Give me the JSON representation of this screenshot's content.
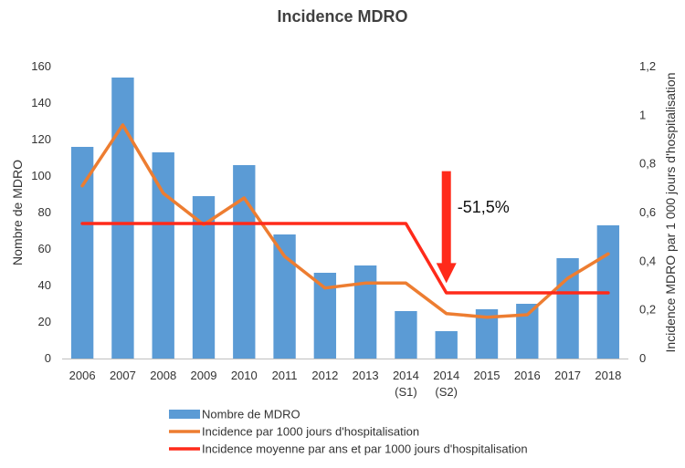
{
  "chart_data": {
    "type": "bar",
    "title": "Incidence MDRO",
    "categories": [
      [
        "2006"
      ],
      [
        "2007"
      ],
      [
        "2008"
      ],
      [
        "2009"
      ],
      [
        "2010"
      ],
      [
        "2011"
      ],
      [
        "2012"
      ],
      [
        "2013"
      ],
      [
        "2014",
        "(S1)"
      ],
      [
        "2014",
        "(S2)"
      ],
      [
        "2015"
      ],
      [
        "2016"
      ],
      [
        "2017"
      ],
      [
        "2018"
      ]
    ],
    "ylabel": "Nombre de MDRO",
    "y2label": "Incidence MDRO par 1 000 jours d'hospitalisation",
    "ylim": [
      0,
      160
    ],
    "yticks": [
      "0",
      "20",
      "40",
      "60",
      "80",
      "100",
      "120",
      "140",
      "160"
    ],
    "y2lim": [
      0,
      1.2
    ],
    "y2ticks": [
      "0",
      "0,2",
      "0,4",
      "0,6",
      "0,8",
      "1",
      "1,2"
    ],
    "series": [
      {
        "name": "Nombre de MDRO",
        "type": "bar",
        "axis": "left",
        "color": "#5B9BD5",
        "values": [
          116,
          154,
          113,
          89,
          106,
          68,
          47,
          51,
          26,
          15,
          27,
          30,
          55,
          73
        ]
      },
      {
        "name": "Incidence par 1000 jours d'hospitalisation",
        "type": "line",
        "axis": "right",
        "color": "#ED7D31",
        "values": [
          0.71,
          0.96,
          0.68,
          0.55,
          0.66,
          0.42,
          0.29,
          0.31,
          0.31,
          0.185,
          0.17,
          0.18,
          0.33,
          0.43
        ]
      },
      {
        "name": "Incidence moyenne par ans et par 1000 jours d'hospitalisation",
        "type": "line",
        "axis": "right",
        "color": "#FF2A1A",
        "values": [
          0.555,
          0.555,
          0.555,
          0.555,
          0.555,
          0.555,
          0.555,
          0.555,
          0.555,
          0.27,
          0.27,
          0.27,
          0.27,
          0.27
        ]
      }
    ],
    "annotation": {
      "text": "-51,5%",
      "arrow_color": "#FF2A1A",
      "arrow_category_index": 9.5,
      "arrow_from": 0.77,
      "arrow_to": 0.31
    },
    "grid": false,
    "legend": "bottom"
  }
}
